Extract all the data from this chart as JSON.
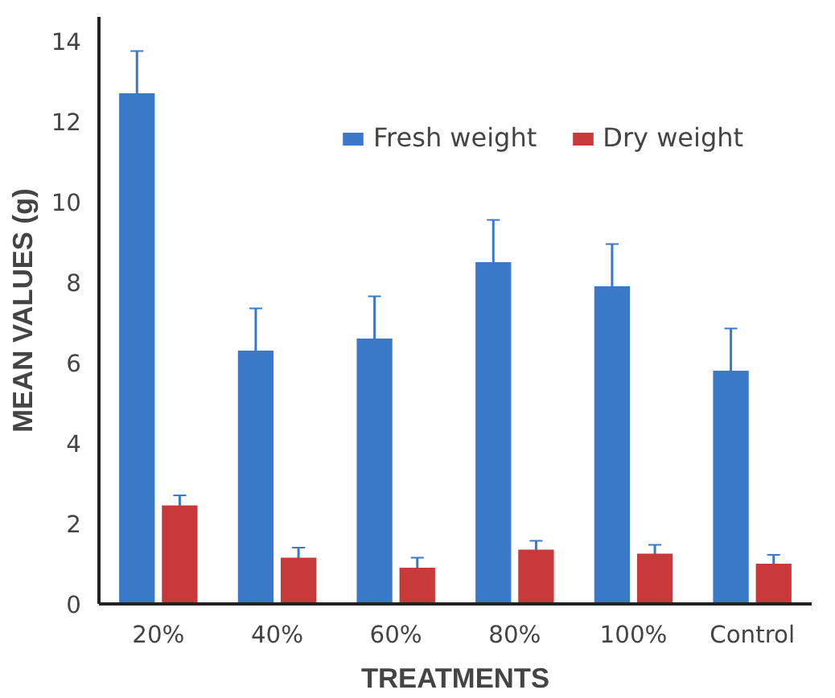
{
  "chart_data": {
    "type": "bar",
    "xlabel": "TREATMENTS",
    "ylabel": "MEAN VALUES (g)",
    "categories": [
      "20%",
      "40%",
      "60%",
      "80%",
      "100%",
      "Control"
    ],
    "series": [
      {
        "name": "Fresh weight",
        "color": "#3a78c8",
        "values": [
          12.7,
          6.3,
          6.6,
          8.5,
          7.9,
          5.8
        ],
        "errors": [
          1.05,
          1.05,
          1.05,
          1.05,
          1.05,
          1.05
        ]
      },
      {
        "name": "Dry weight",
        "color": "#c83a3a",
        "values": [
          2.45,
          1.15,
          0.9,
          1.35,
          1.25,
          1.0
        ],
        "errors": [
          0.25,
          0.25,
          0.25,
          0.22,
          0.22,
          0.22
        ]
      }
    ],
    "ylim": [
      0,
      14.6
    ],
    "yticks": [
      0,
      2,
      4,
      6,
      8,
      10,
      12,
      14
    ],
    "grid": false,
    "legend": "top right"
  }
}
